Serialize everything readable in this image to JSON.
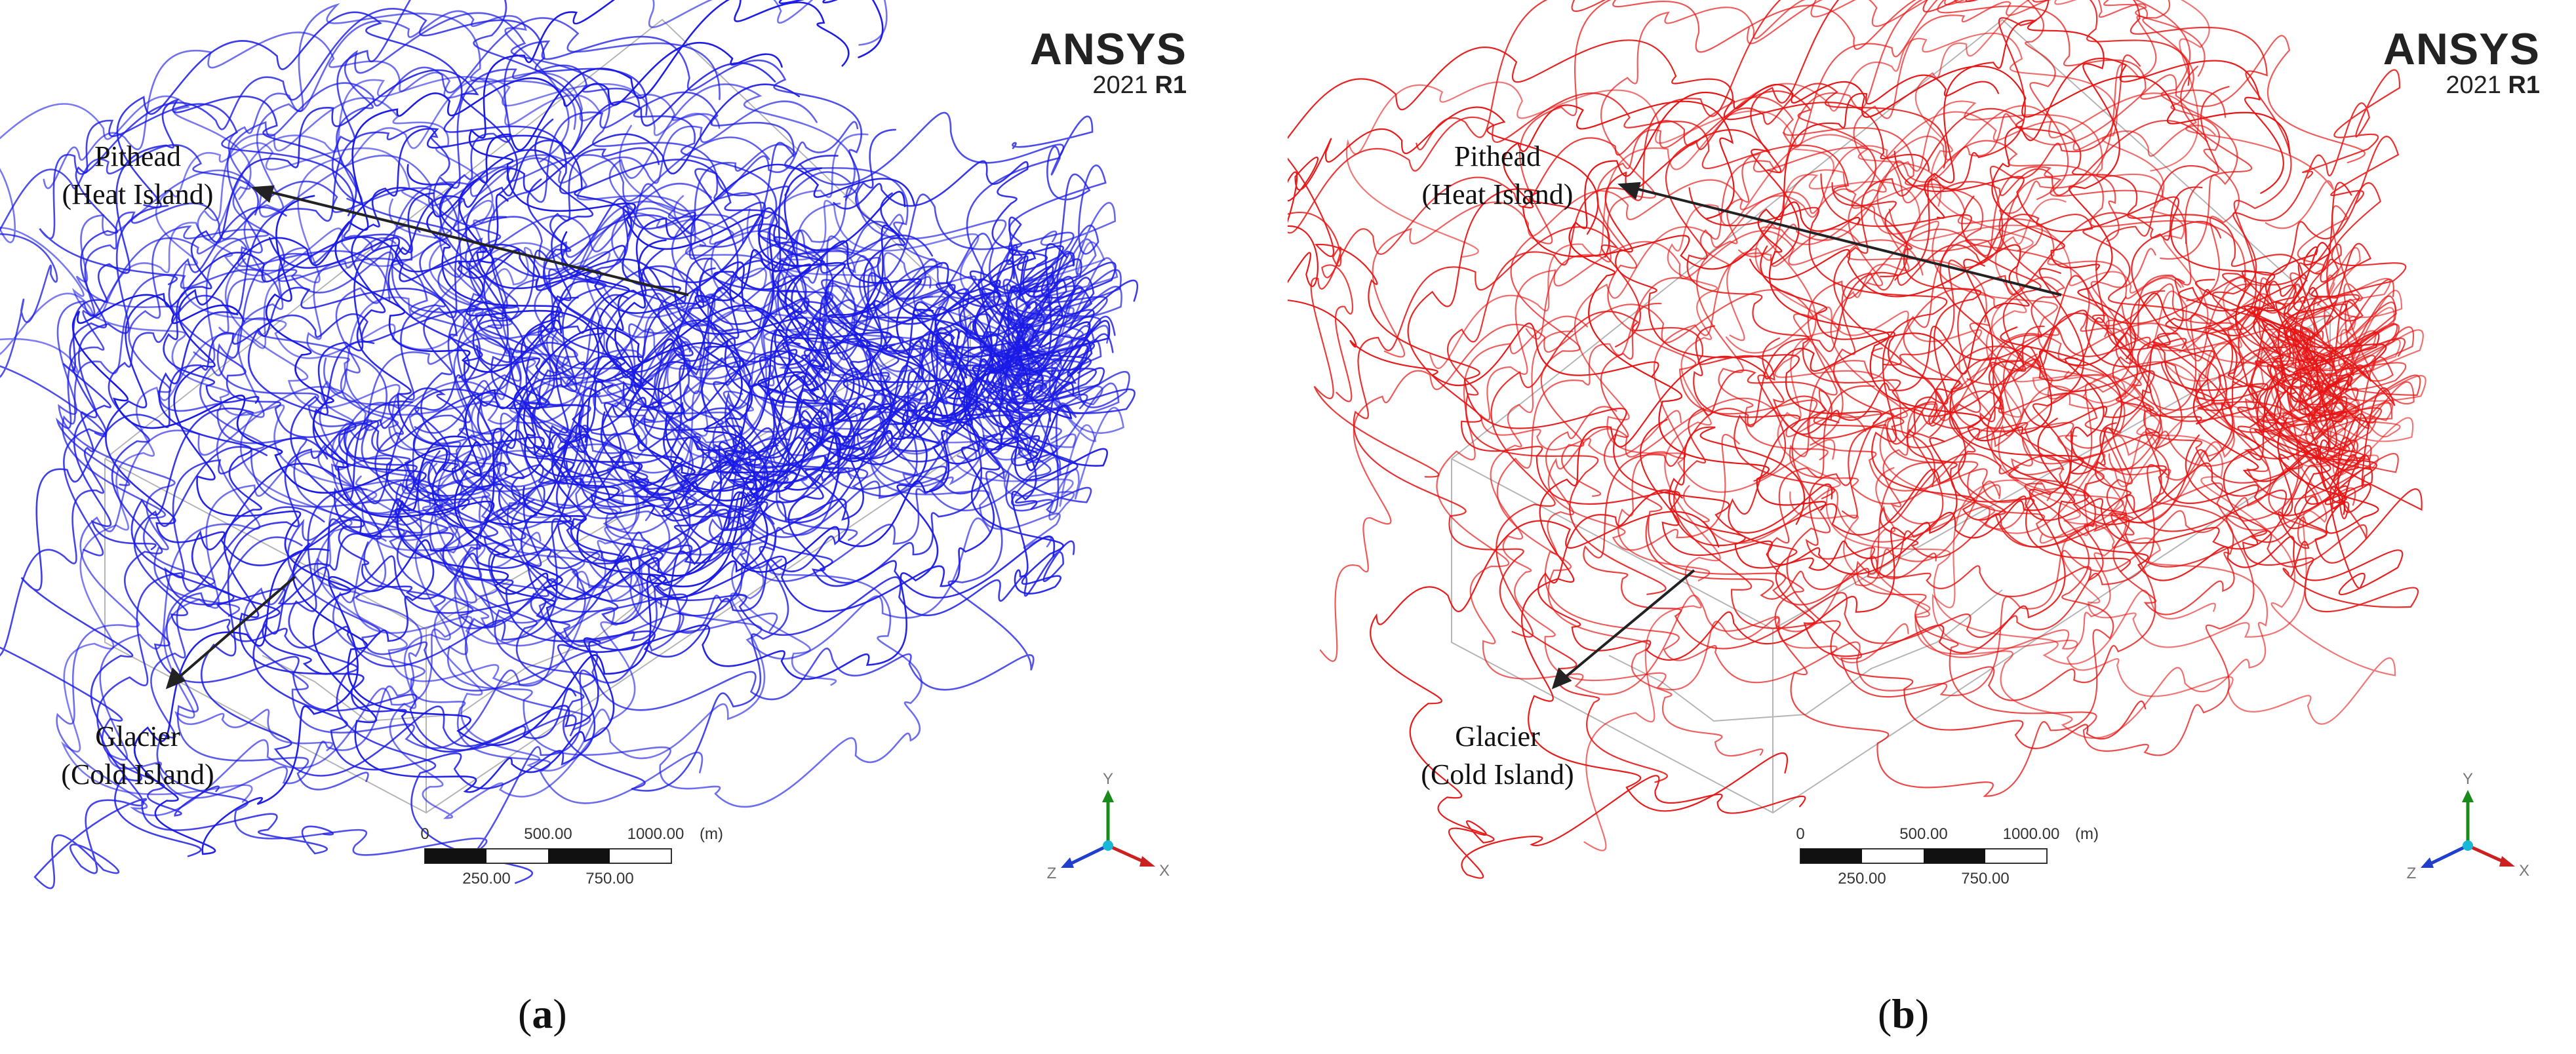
{
  "panels": [
    {
      "id": "a",
      "caption_letter": "a",
      "streamline_color": "#1a1ae6",
      "brand_name": "ANSYS",
      "brand_version": "2021",
      "brand_release": "R1",
      "label_top_line1": "Pithead",
      "label_top_line2": "(Heat Island)",
      "label_bottom_line1": "Glacier",
      "label_bottom_line2": "(Cold Island)",
      "scale_ticks_top": [
        "0",
        "500.00",
        "1000.00"
      ],
      "scale_ticks_bottom": [
        "250.00",
        "750.00"
      ],
      "scale_unit": "(m)",
      "axis_labels": [
        "Y",
        "X",
        "Z"
      ]
    },
    {
      "id": "b",
      "caption_letter": "b",
      "streamline_color": "#e61414",
      "brand_name": "ANSYS",
      "brand_version": "2021",
      "brand_release": "R1",
      "label_top_line1": "Pithead",
      "label_top_line2": "(Heat Island)",
      "label_bottom_line1": "Glacier",
      "label_bottom_line2": "(Cold Island)",
      "scale_ticks_top": [
        "0",
        "500.00",
        "1000.00"
      ],
      "scale_ticks_bottom": [
        "250.00",
        "750.00"
      ],
      "scale_unit": "(m)",
      "axis_labels": [
        "Y",
        "X",
        "Z"
      ]
    }
  ]
}
